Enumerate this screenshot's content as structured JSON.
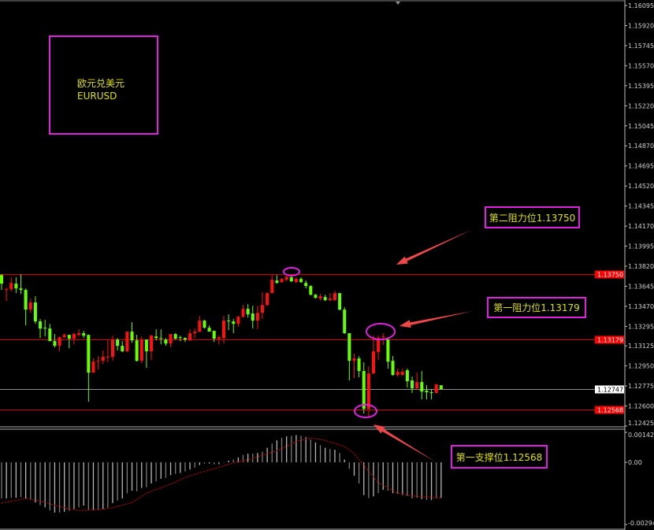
{
  "symbol_box": {
    "name_cn": "欧元兑美元",
    "symbol": "EURUSD"
  },
  "annotations": {
    "resistance_2": "第二阻力位1.13750",
    "resistance_1": "第一阻力位1.13179",
    "support_1": "第一支撑位1.12568"
  },
  "colors": {
    "background": "#000000",
    "up_candle": "#ff1010",
    "down_candle": "#66ff00",
    "level_line": "#d00000",
    "annotation_border": "#e020e0",
    "annotation_text": "#e0e000",
    "arrow": "#f04848",
    "macd_histogram": "#c8c8c8",
    "macd_signal": "#c00000"
  },
  "chart_data": [
    {
      "type": "candlestick",
      "title": "",
      "y_ticks": [
        "1.16095",
        "1.15920",
        "1.15745",
        "1.15570",
        "1.15395",
        "1.15220",
        "1.15045",
        "1.14870",
        "1.14695",
        "1.14520",
        "1.14345",
        "1.14170",
        "1.13995",
        "1.13820",
        "1.13645",
        "1.13470",
        "1.13295",
        "1.13125",
        "1.12950",
        "1.12775",
        "1.12600",
        "1.12425"
      ],
      "ylim": [
        1.12425,
        1.16095
      ],
      "levels": [
        {
          "price": "1.13750",
          "kind": "resistance"
        },
        {
          "price": "1.13179",
          "kind": "resistance"
        },
        {
          "price": "1.12568",
          "kind": "support"
        }
      ],
      "current_price": "1.12747",
      "ohlc_columns": [
        "open",
        "high",
        "low",
        "close"
      ],
      "candles": [
        [
          1.13743,
          1.1375,
          1.13613,
          1.13668
        ],
        [
          1.13613,
          1.13633,
          1.13516,
          1.13619
        ],
        [
          1.13619,
          1.13723,
          1.13599,
          1.13674
        ],
        [
          1.13668,
          1.13723,
          1.13585,
          1.13626
        ],
        [
          1.13626,
          1.1375,
          1.13578,
          1.13613
        ],
        [
          1.13613,
          1.13626,
          1.13304,
          1.13441
        ],
        [
          1.13441,
          1.13537,
          1.13413,
          1.13503
        ],
        [
          1.13503,
          1.13558,
          1.13317,
          1.13338
        ],
        [
          1.13338,
          1.13359,
          1.13193,
          1.13276
        ],
        [
          1.13283,
          1.13352,
          1.13207,
          1.13276
        ],
        [
          1.13276,
          1.13317,
          1.13166,
          1.13166
        ],
        [
          1.13166,
          1.13228,
          1.13111,
          1.13125
        ],
        [
          1.13125,
          1.13207,
          1.13077,
          1.132
        ],
        [
          1.132,
          1.13235,
          1.13193,
          1.13221
        ],
        [
          1.13221,
          1.13221,
          1.13104,
          1.13187
        ],
        [
          1.13187,
          1.13242,
          1.13138,
          1.13228
        ],
        [
          1.13221,
          1.13269,
          1.13207,
          1.13235
        ],
        [
          1.13235,
          1.13256,
          1.13193,
          1.13214
        ],
        [
          1.13221,
          1.13221,
          1.12637,
          1.12891
        ],
        [
          1.12891,
          1.13015,
          1.12891,
          1.12987
        ],
        [
          1.12987,
          1.13035,
          1.12919,
          1.12994
        ],
        [
          1.12994,
          1.13084,
          1.12967,
          1.13029
        ],
        [
          1.13022,
          1.1318,
          1.12981,
          1.13029
        ],
        [
          1.13029,
          1.13214,
          1.12994,
          1.1318
        ],
        [
          1.1318,
          1.13193,
          1.13084,
          1.13125
        ],
        [
          1.13125,
          1.13166,
          1.1307,
          1.13077
        ],
        [
          1.13077,
          1.13249,
          1.1307,
          1.13249
        ],
        [
          1.13249,
          1.13331,
          1.13152,
          1.13173
        ],
        [
          1.13173,
          1.13221,
          1.12987,
          1.12994
        ],
        [
          1.12994,
          1.13207,
          1.12974,
          1.1318
        ],
        [
          1.1318,
          1.1318,
          1.12932,
          1.13077
        ],
        [
          1.13077,
          1.13221,
          1.13001,
          1.13214
        ],
        [
          1.13207,
          1.13269,
          1.13173,
          1.13193
        ],
        [
          1.13193,
          1.13269,
          1.13138,
          1.13187
        ],
        [
          1.1318,
          1.13193,
          1.13125,
          1.13145
        ],
        [
          1.13145,
          1.13228,
          1.13111,
          1.13228
        ],
        [
          1.13228,
          1.13235,
          1.1318,
          1.13187
        ],
        [
          1.132,
          1.13214,
          1.13166,
          1.13193
        ],
        [
          1.13193,
          1.132,
          1.13159,
          1.1318
        ],
        [
          1.13173,
          1.13269,
          1.13166,
          1.13235
        ],
        [
          1.13235,
          1.13276,
          1.13193,
          1.13249
        ],
        [
          1.13249,
          1.13386,
          1.13242,
          1.13345
        ],
        [
          1.13345,
          1.13352,
          1.13276,
          1.13283
        ],
        [
          1.13283,
          1.13304,
          1.13249,
          1.13249
        ],
        [
          1.13256,
          1.13256,
          1.13159,
          1.13187
        ],
        [
          1.13187,
          1.13214,
          1.13138,
          1.132
        ],
        [
          1.13193,
          1.13386,
          1.13145,
          1.13345
        ],
        [
          1.13345,
          1.134,
          1.13262,
          1.13338
        ],
        [
          1.13338,
          1.13359,
          1.13235,
          1.13317
        ],
        [
          1.13317,
          1.13386,
          1.1329,
          1.13379
        ],
        [
          1.13379,
          1.13482,
          1.13372,
          1.13448
        ],
        [
          1.13448,
          1.13489,
          1.13372,
          1.134
        ],
        [
          1.13407,
          1.13475,
          1.13276,
          1.13345
        ],
        [
          1.13345,
          1.13475,
          1.13269,
          1.13413
        ],
        [
          1.13413,
          1.13592,
          1.13359,
          1.13482
        ],
        [
          1.13482,
          1.13592,
          1.13468,
          1.13585
        ],
        [
          1.13585,
          1.1375,
          1.13585,
          1.13702
        ],
        [
          1.13695,
          1.13743,
          1.13668,
          1.13674
        ],
        [
          1.13681,
          1.13716,
          1.13674,
          1.13709
        ],
        [
          1.13702,
          1.13736,
          1.13688,
          1.13729
        ],
        [
          1.13723,
          1.13736,
          1.13681,
          1.13688
        ],
        [
          1.13681,
          1.13723,
          1.13674,
          1.13709
        ],
        [
          1.13709,
          1.13723,
          1.13674,
          1.13681
        ],
        [
          1.13674,
          1.13695,
          1.13626,
          1.13647
        ],
        [
          1.13647,
          1.13654,
          1.13565,
          1.13571
        ],
        [
          1.13571,
          1.13578,
          1.13537,
          1.13544
        ],
        [
          1.13537,
          1.13578,
          1.13523,
          1.13558
        ],
        [
          1.13551,
          1.13571,
          1.13516,
          1.13523
        ],
        [
          1.13523,
          1.13585,
          1.13516,
          1.13537
        ],
        [
          1.13523,
          1.13606,
          1.13516,
          1.13585
        ],
        [
          1.13585,
          1.13585,
          1.13434,
          1.13441
        ],
        [
          1.13441,
          1.13462,
          1.13228,
          1.13235
        ],
        [
          1.13235,
          1.13235,
          1.12823,
          1.12994
        ],
        [
          1.12994,
          1.13056,
          1.12843,
          1.13015
        ],
        [
          1.13015,
          1.13035,
          1.1285,
          1.12905
        ],
        [
          1.12905,
          1.12981,
          1.12534,
          1.12575
        ],
        [
          1.12575,
          1.12946,
          1.125,
          1.12884
        ],
        [
          1.12884,
          1.13214,
          1.12878,
          1.13077
        ],
        [
          1.1307,
          1.13214,
          1.13001,
          1.13193
        ],
        [
          1.132,
          1.13235,
          1.13132,
          1.13207
        ],
        [
          1.1318,
          1.132,
          1.12926,
          1.12987
        ],
        [
          1.12994,
          1.13035,
          1.12864,
          1.12871
        ],
        [
          1.12871,
          1.12926,
          1.12857,
          1.12898
        ],
        [
          1.12871,
          1.12926,
          1.12864,
          1.12898
        ],
        [
          1.12912,
          1.12926,
          1.12761,
          1.12816
        ],
        [
          1.12823,
          1.12857,
          1.12713,
          1.12754
        ],
        [
          1.12754,
          1.12891,
          1.1274,
          1.12809
        ],
        [
          1.12809,
          1.12905,
          1.12658,
          1.12726
        ],
        [
          1.12733,
          1.12781,
          1.12658,
          1.1272
        ],
        [
          1.1272,
          1.12747,
          1.12658,
          1.12713
        ],
        [
          1.12713,
          1.12795,
          1.12713,
          1.12788
        ],
        [
          1.12781,
          1.12781,
          1.12747,
          1.12747
        ]
      ]
    },
    {
      "type": "bar",
      "title": "",
      "y_ticks": [
        "0.00142",
        "0.00",
        "-0.002943"
      ],
      "ylim": [
        -0.002943,
        0.00142
      ],
      "histogram": [
        -0.00171,
        -0.00171,
        -0.00168,
        -0.00168,
        -0.00165,
        -0.00171,
        -0.00178,
        -0.0019,
        -0.00203,
        -0.00213,
        -0.00228,
        -0.00238,
        -0.00238,
        -0.00234,
        -0.0023,
        -0.00221,
        -0.00213,
        -0.00205,
        -0.00225,
        -0.00225,
        -0.00225,
        -0.00221,
        -0.00215,
        -0.00193,
        -0.00181,
        -0.00171,
        -0.00146,
        -0.00134,
        -0.00138,
        -0.00121,
        -0.00118,
        -0.001,
        -0.0009,
        -0.00078,
        -0.00074,
        -0.00061,
        -0.00055,
        -0.0005,
        -0.00043,
        -0.00034,
        -0.00025,
        -0.00013,
        -6e-05,
        -6e-05,
        -9e-05,
        -9e-05,
        -2e-05,
        8e-05,
        0.00014,
        0.00023,
        0.00035,
        0.00041,
        0.00041,
        0.00044,
        0.00051,
        0.00069,
        0.00089,
        0.00104,
        0.00116,
        0.00123,
        0.00126,
        0.00129,
        0.00126,
        0.00119,
        0.00108,
        0.00094,
        0.00081,
        0.00069,
        0.00063,
        0.0006,
        0.00044,
        0.00013,
        -0.00031,
        -0.00063,
        -0.001,
        -0.00155,
        -0.00169,
        -0.00161,
        -0.00146,
        -0.0013,
        -0.00134,
        -0.00146,
        -0.0015,
        -0.00155,
        -0.00159,
        -0.00169,
        -0.00168,
        -0.00174,
        -0.00178,
        -0.00178,
        -0.00171,
        -0.00168
      ],
      "signal_points": [
        [
          1,
          -0.00193
        ],
        [
          6,
          -0.00171
        ],
        [
          9,
          -0.00184
        ],
        [
          12,
          -0.00203
        ],
        [
          15,
          -0.00221
        ],
        [
          17,
          -0.00228
        ],
        [
          21,
          -0.00225
        ],
        [
          24,
          -0.00215
        ],
        [
          28,
          -0.0019
        ],
        [
          31,
          -0.00146
        ],
        [
          36,
          -0.00103
        ],
        [
          40,
          -0.00063
        ],
        [
          45,
          -0.0003
        ],
        [
          48,
          -9e-05
        ],
        [
          52,
          0.00013
        ],
        [
          58,
          0.00054
        ],
        [
          62,
          0.00098
        ],
        [
          65,
          0.00116
        ],
        [
          68,
          0.00104
        ],
        [
          72,
          0.00075
        ],
        [
          74,
          0.00041
        ],
        [
          76,
          -0.00015
        ],
        [
          79,
          -0.00096
        ],
        [
          83,
          -0.00146
        ],
        [
          86,
          -0.00159
        ],
        [
          92,
          -0.00169
        ]
      ]
    }
  ]
}
